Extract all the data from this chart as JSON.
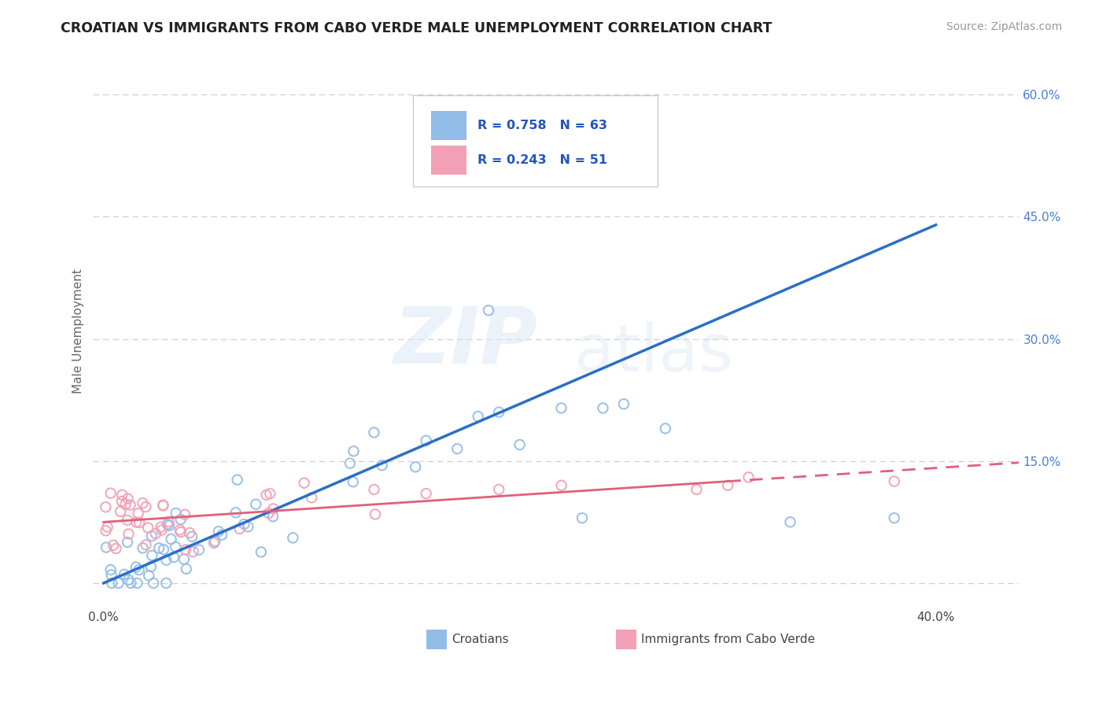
{
  "title": "CROATIAN VS IMMIGRANTS FROM CABO VERDE MALE UNEMPLOYMENT CORRELATION CHART",
  "source": "Source: ZipAtlas.com",
  "ylabel": "Male Unemployment",
  "xlim": [
    -0.005,
    0.44
  ],
  "ylim": [
    -0.03,
    0.65
  ],
  "blue_R": "0.758",
  "blue_N": "63",
  "pink_R": "0.243",
  "pink_N": "51",
  "blue_color": "#92bce8",
  "pink_color": "#f2a0b5",
  "blue_line_color": "#2a6fc7",
  "pink_line_color": "#e0607a",
  "legend_label_blue": "Croatians",
  "legend_label_pink": "Immigrants from Cabo Verde",
  "watermark_zip": "ZIP",
  "watermark_atlas": "atlas",
  "grid_color": "#d0d0d0",
  "bg_color": "#ffffff",
  "blue_trend_x0": 0.0,
  "blue_trend_y0": 0.0,
  "blue_trend_x1": 0.4,
  "blue_trend_y1": 0.44,
  "pink_trend_solid_x0": 0.0,
  "pink_trend_solid_y0": 0.075,
  "pink_trend_solid_x1": 0.3,
  "pink_trend_solid_y1": 0.125,
  "pink_trend_dash_x0": 0.3,
  "pink_trend_dash_y0": 0.125,
  "pink_trend_dash_x1": 0.44,
  "pink_trend_dash_y1": 0.148,
  "yticks": [
    0.0,
    0.15,
    0.3,
    0.45,
    0.6
  ],
  "ytick_labels_right": [
    "",
    "15.0%",
    "30.0%",
    "45.0%",
    "60.0%"
  ]
}
